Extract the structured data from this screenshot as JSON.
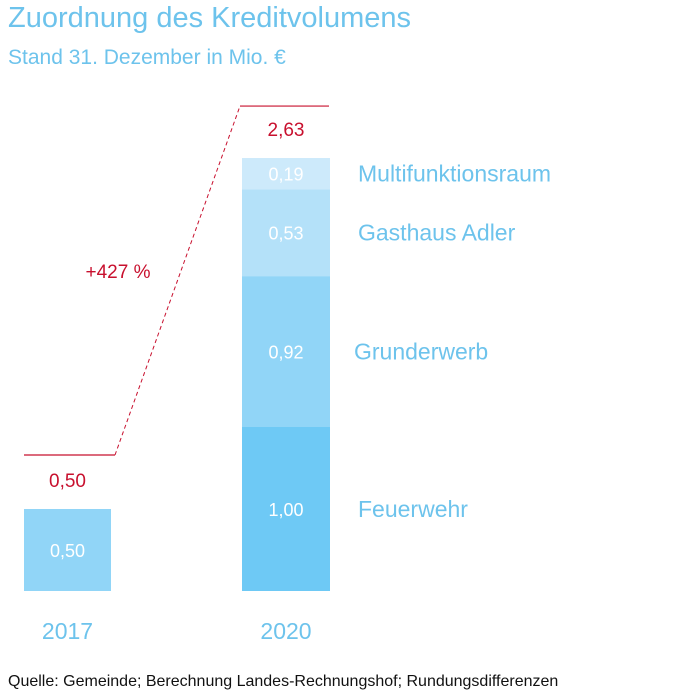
{
  "colors": {
    "title": "#6dc3ec",
    "accent_red": "#c8102e",
    "feuerwehr": "#6ec9f5",
    "grunderwerb": "#91d5f7",
    "gasthaus": "#b4e1f9",
    "multifunktion": "#cdeafb",
    "bar_2017": "#91d5f7",
    "label_white": "#ffffff",
    "legend_text": "#6dc3ec"
  },
  "chart_data": {
    "type": "bar",
    "stacked": true,
    "title": "Zuordnung des Kreditvolumens",
    "subtitle": "Stand 31. Dezember in Mio. €",
    "categories": [
      "2017",
      "2020"
    ],
    "totals": [
      {
        "category": "2017",
        "value": 0.5,
        "label": "0,50"
      },
      {
        "category": "2020",
        "value": 2.63,
        "label": "2,63"
      }
    ],
    "change_label": "+427 %",
    "bar_2017": {
      "value": 0.5,
      "label": "0,50"
    },
    "series_2020": [
      {
        "name": "Feuerwehr",
        "value": 1.0,
        "label": "1,00"
      },
      {
        "name": "Grunderwerb",
        "value": 0.92,
        "label": "0,92"
      },
      {
        "name": "Gasthaus Adler",
        "value": 0.53,
        "label": "0,53"
      },
      {
        "name": "Multifunktionsraum",
        "value": 0.19,
        "label": "0,19"
      }
    ],
    "source": "Quelle: Gemeinde; Berechnung Landes-Rechnungshof; Rundungsdifferenzen"
  }
}
